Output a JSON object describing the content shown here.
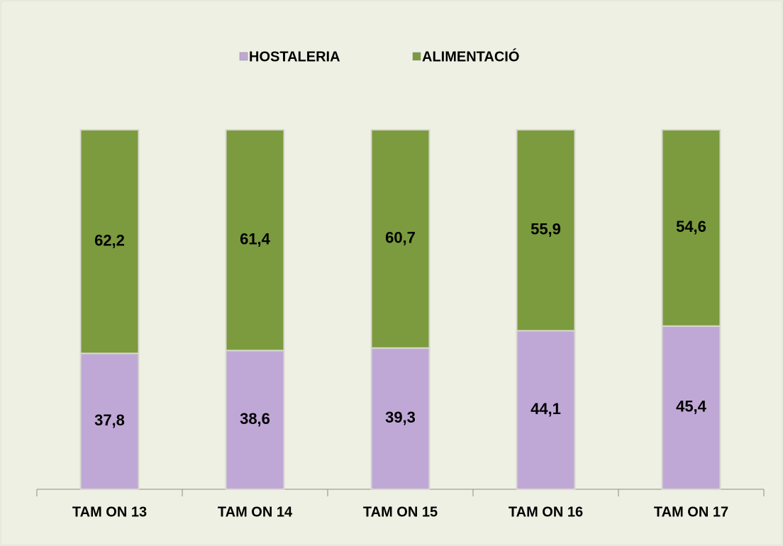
{
  "chart_data": {
    "type": "stacked_bar",
    "categories": [
      "TAM ON 13",
      "TAM ON 14",
      "TAM ON 15",
      "TAM ON 16",
      "TAM ON 17"
    ],
    "series": [
      {
        "name": "HOSTALERIA",
        "color": "#c0a8d6",
        "values": [
          37.8,
          38.6,
          39.3,
          44.1,
          45.4
        ],
        "value_labels": [
          "37,8",
          "38,6",
          "39,3",
          "44,1",
          "45,4"
        ]
      },
      {
        "name": "ALIMENTACIÓ",
        "color": "#7b9b3e",
        "values": [
          62.2,
          61.4,
          60.7,
          55.9,
          54.6
        ],
        "value_labels": [
          "62,2",
          "61,4",
          "60,7",
          "55,9",
          "54,6"
        ]
      }
    ],
    "legend": "top"
  }
}
